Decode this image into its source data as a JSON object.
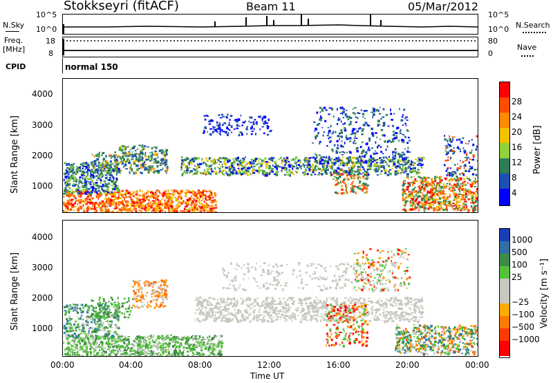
{
  "header": {
    "title": "Stokkseyri (fitACF)",
    "beam": "Beam 11",
    "date": "05/Mar/2012"
  },
  "sky_panel": {
    "left_label": "N.Sky",
    "right_label": "N.Search",
    "left_ticks": [
      "10^5",
      "10^0"
    ],
    "right_ticks": [
      "10^5",
      "10^0"
    ]
  },
  "freq_panel": {
    "left_label_1": "Freq.",
    "left_label_2": "[MHz]",
    "left_ticks": [
      "18",
      "8"
    ],
    "right_label": "Nave",
    "right_ticks": [
      "80",
      "0"
    ]
  },
  "cpid_panel": {
    "label": "CPID",
    "mode": "normal 150"
  },
  "chart_data": [
    {
      "type": "heatmap",
      "title": "",
      "ylabel": "Slant Range [km]",
      "xlabel": "",
      "y_ticks": [
        "1000",
        "2000",
        "3000",
        "4000"
      ],
      "ylim": [
        200,
        4500
      ],
      "colorbar_label": "Power [dB]",
      "colorbar_ticks": [
        "4",
        "8",
        "12",
        "16",
        "20",
        "24",
        "28"
      ],
      "colors": [
        "#0000ff",
        "#1d4fb0",
        "#2e7d57",
        "#46a24a",
        "#8fd23a",
        "#f2c100",
        "#ff8a00",
        "#ff4c00",
        "#ff0000"
      ]
    },
    {
      "type": "heatmap",
      "title": "",
      "ylabel": "Slant Range [km]",
      "xlabel": "Time UT",
      "x_ticks": [
        "00:00",
        "04:00",
        "08:00",
        "12:00",
        "16:00",
        "20:00",
        "00:00"
      ],
      "y_ticks": [
        "1000",
        "2000",
        "3000",
        "4000"
      ],
      "ylim": [
        200,
        4500
      ],
      "colorbar_label": "Velocity [m s⁻¹]",
      "colorbar_ticks": [
        "1000",
        "500",
        "100",
        "25",
        "−25",
        "−100",
        "−500",
        "−1000"
      ],
      "colors": [
        "#1a3fb5",
        "#2f7fa0",
        "#3e8a4a",
        "#55c23a",
        "#c8c8c0",
        "#c8c8c0",
        "#ff9a00",
        "#ff6a00",
        "#ff2a00",
        "#ff0000"
      ]
    }
  ]
}
